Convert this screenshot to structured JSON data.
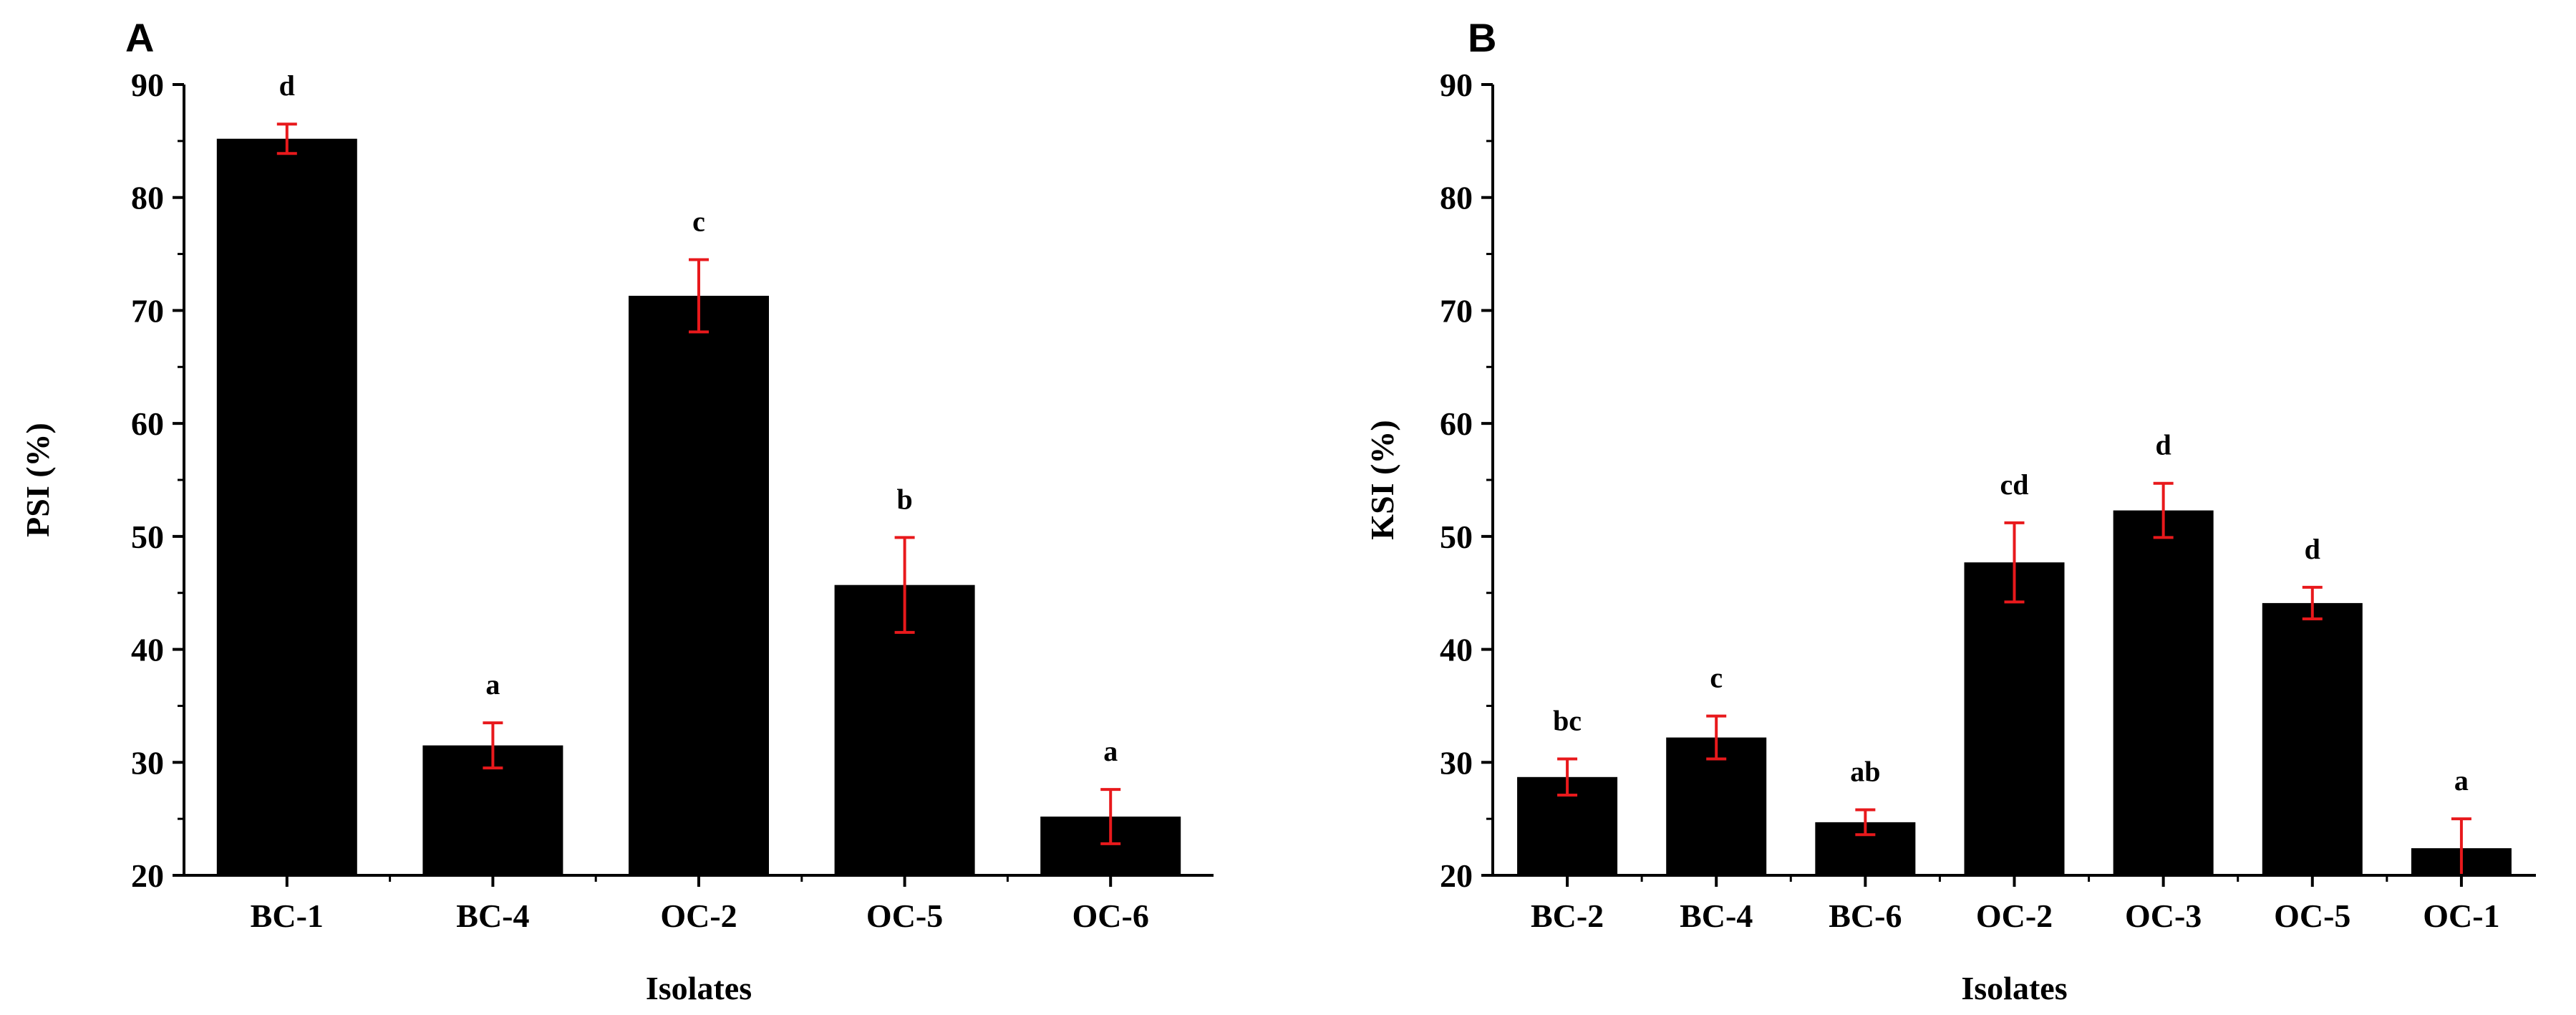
{
  "chart_data": [
    {
      "panel": "A",
      "type": "bar",
      "xlabel": "Isolates",
      "ylabel": "PSI (%)",
      "ylim": [
        20,
        90
      ],
      "yticks": [
        20,
        30,
        40,
        50,
        60,
        70,
        80,
        90
      ],
      "categories": [
        "BC-1",
        "BC-4",
        "OC-2",
        "OC-5",
        "OC-6"
      ],
      "values": [
        85.2,
        31.5,
        71.3,
        45.7,
        25.2
      ],
      "errors": [
        1.3,
        2.0,
        3.2,
        4.2,
        2.4
      ],
      "significance": [
        "d",
        "a",
        "c",
        "b",
        "a"
      ],
      "bar_color": "#000000",
      "error_color": "#e8191c"
    },
    {
      "panel": "B",
      "type": "bar",
      "xlabel": "Isolates",
      "ylabel": "KSI (%)",
      "ylim": [
        20,
        90
      ],
      "yticks": [
        20,
        30,
        40,
        50,
        60,
        70,
        80,
        90
      ],
      "categories": [
        "BC-2",
        "BC-4",
        "BC-6",
        "OC-2",
        "OC-3",
        "OC-5",
        "OC-1"
      ],
      "values": [
        28.7,
        32.2,
        24.7,
        47.7,
        52.3,
        44.1,
        22.4
      ],
      "errors": [
        1.6,
        1.9,
        1.1,
        3.5,
        2.4,
        1.4,
        2.6
      ],
      "significance": [
        "bc",
        "c",
        "ab",
        "cd",
        "d",
        "d",
        "a"
      ],
      "bar_color": "#000000",
      "error_color": "#e8191c"
    }
  ]
}
